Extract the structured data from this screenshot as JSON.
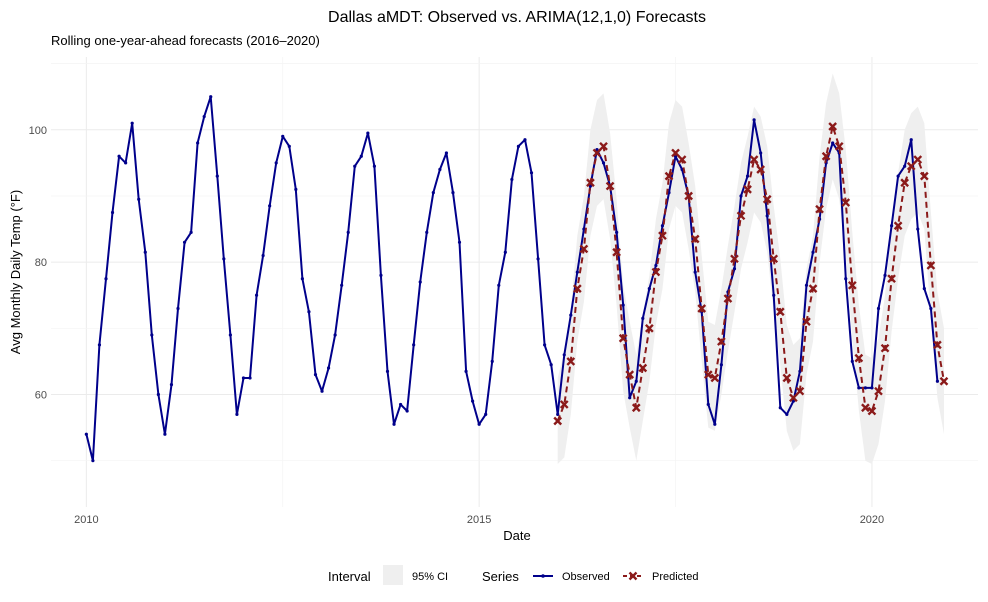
{
  "chart_data": {
    "type": "line",
    "title": "Dallas aMDT: Observed vs. ARIMA(12,1,0) Forecasts",
    "subtitle": "Rolling one-year-ahead forecasts (2016–2020)",
    "xlabel": "Date",
    "ylabel": "Avg Monthly Daily Temp (°F)",
    "xlim": [
      2009.55,
      2021.35
    ],
    "ylim": [
      43,
      111
    ],
    "x_ticks": [
      2010,
      2015,
      2020
    ],
    "x_tick_labels": [
      "2010",
      "2015",
      "2020"
    ],
    "y_ticks": [
      60,
      80,
      100
    ],
    "y_tick_labels": [
      "60",
      "80",
      "100"
    ],
    "grid": true,
    "legend_position": "bottom",
    "legend": {
      "interval_title": "Interval",
      "interval_label": "95% CI",
      "series_title": "Series",
      "observed_label": "Observed",
      "predicted_label": "Predicted"
    },
    "colors": {
      "observed": "#00008b",
      "predicted": "#8b1a1a",
      "ci_fill": "#efefef"
    },
    "observed": {
      "name": "Observed",
      "start": "2010-01",
      "values": [
        54,
        50,
        67.5,
        77.5,
        87.5,
        96,
        95,
        101,
        89.5,
        81.5,
        69,
        60,
        54,
        61.5,
        73,
        83,
        84.5,
        98,
        102,
        105,
        93,
        80.5,
        69,
        57,
        62.5,
        62.5,
        75,
        81,
        88.5,
        95,
        99,
        97.5,
        91,
        77.5,
        72.5,
        63,
        60.5,
        64,
        69,
        76.5,
        84.5,
        94.5,
        96,
        99.5,
        94.5,
        78,
        63.5,
        55.5,
        58.5,
        57.5,
        67.5,
        77,
        84.5,
        90.5,
        94,
        96.5,
        90.5,
        83,
        63.5,
        59,
        55.5,
        57,
        65,
        76.5,
        81.5,
        92.5,
        97.5,
        98.5,
        93.5,
        80.5,
        67.5,
        64.5,
        57,
        66,
        72,
        78.5,
        85,
        91.5,
        97,
        95,
        91.5,
        84.5,
        73.5,
        59.5,
        62,
        71.5,
        76,
        79.5,
        85.5,
        90.5,
        96,
        94,
        90,
        78.5,
        72.5,
        58.5,
        55.5,
        64.5,
        75.5,
        79,
        90,
        93,
        101.5,
        96.5,
        87,
        75,
        58,
        57,
        59,
        63.5,
        76.5,
        81.5,
        86.5,
        95,
        98,
        96.5,
        77.5,
        65,
        61,
        61,
        61,
        73,
        78,
        85.5,
        93,
        94.5,
        98.5,
        85,
        76,
        73,
        62
      ]
    },
    "predicted": {
      "name": "Predicted",
      "start": "2016-01",
      "values": [
        56,
        58.5,
        65,
        76,
        82,
        92,
        96.5,
        97.5,
        91.5,
        81.5,
        68.5,
        63,
        58,
        64,
        70,
        78.5,
        84,
        93,
        96.5,
        95.5,
        90,
        83.5,
        73,
        63,
        62.5,
        68,
        74.5,
        80.5,
        87,
        91,
        95.5,
        94,
        89.5,
        80.5,
        72.5,
        62.5,
        59.5,
        60.5,
        71,
        76,
        88,
        96,
        100.5,
        97.5,
        89,
        76.5,
        65.5,
        58,
        57.5,
        60.5,
        67,
        77.5,
        85.5,
        92,
        94.5,
        95.5,
        93,
        79.5,
        67.5,
        62
      ]
    },
    "ci_lower": [
      49.5,
      50.5,
      57,
      68,
      74,
      84,
      88.5,
      89.5,
      83.5,
      73.5,
      60.5,
      55,
      50,
      56,
      62,
      70.5,
      76,
      85,
      88.5,
      87.5,
      82,
      75.5,
      65,
      55,
      54.5,
      60,
      66.5,
      72.5,
      79,
      83,
      87.5,
      86,
      81.5,
      72.5,
      64.5,
      54.5,
      51.5,
      52.5,
      63,
      68,
      80,
      88,
      92.5,
      89.5,
      81,
      68.5,
      57.5,
      50,
      49.5,
      52.5,
      59,
      69.5,
      77.5,
      84,
      86.5,
      87.5,
      85,
      71.5,
      59.5,
      54
    ],
    "ci_upper": [
      62.5,
      66.5,
      73,
      84,
      90,
      100,
      104.5,
      105.5,
      99.5,
      89.5,
      76.5,
      71,
      66,
      72,
      78,
      86.5,
      92,
      101,
      104.5,
      103.5,
      98,
      91.5,
      81,
      71,
      70.5,
      76,
      82.5,
      88.5,
      95,
      99,
      103.5,
      102,
      97.5,
      88.5,
      80.5,
      70.5,
      67.5,
      68.5,
      79,
      84,
      96,
      104,
      108.5,
      105.5,
      97,
      84.5,
      73.5,
      66,
      65.5,
      68.5,
      75,
      85.5,
      93.5,
      100,
      102.5,
      103.5,
      101,
      87.5,
      75.5,
      70
    ]
  }
}
